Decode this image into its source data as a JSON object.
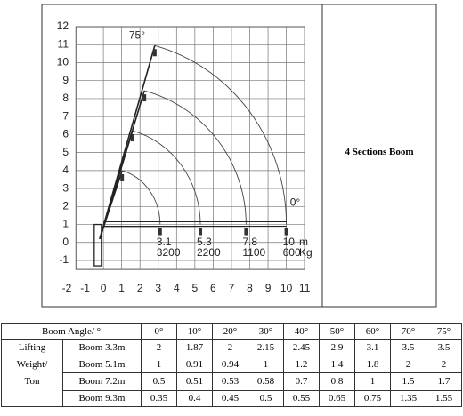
{
  "diagram": {
    "xticks": [
      -2,
      -1,
      0,
      1,
      2,
      3,
      4,
      5,
      6,
      7,
      8,
      9,
      10,
      11
    ],
    "yticks": [
      -1,
      0,
      1,
      2,
      3,
      4,
      5,
      6,
      7,
      8,
      9,
      10,
      11,
      12
    ],
    "angle_max": "75°",
    "angle_min": "0°",
    "reaches": [
      3.1,
      5.3,
      7.8,
      10
    ],
    "reach_unit": "m",
    "loads": [
      3200,
      2200,
      1100,
      600
    ],
    "load_unit": "Kg"
  },
  "title": "4 Sections Boom",
  "table": {
    "header": [
      "Boom Angle/ °",
      "0°",
      "10°",
      "20°",
      "30°",
      "40°",
      "50°",
      "60°",
      "70°",
      "75°"
    ],
    "group_label": "Lifting\nWeight/\nTon",
    "rows": [
      {
        "label": "Boom 3.3m",
        "values": [
          2,
          1.87,
          2,
          2.15,
          2.45,
          2.9,
          3.1,
          3.5,
          3.5
        ]
      },
      {
        "label": "Boom 5.1m",
        "values": [
          1,
          0.91,
          0.94,
          1,
          1.2,
          1.4,
          1.8,
          2,
          2
        ]
      },
      {
        "label": "Boom 7.2m",
        "values": [
          0.5,
          0.51,
          0.53,
          0.58,
          0.7,
          0.8,
          1,
          1.5,
          1.7
        ]
      },
      {
        "label": "Boom 9.3m",
        "values": [
          0.35,
          0.4,
          0.45,
          0.5,
          0.55,
          0.65,
          0.75,
          1.35,
          1.55
        ]
      }
    ]
  }
}
